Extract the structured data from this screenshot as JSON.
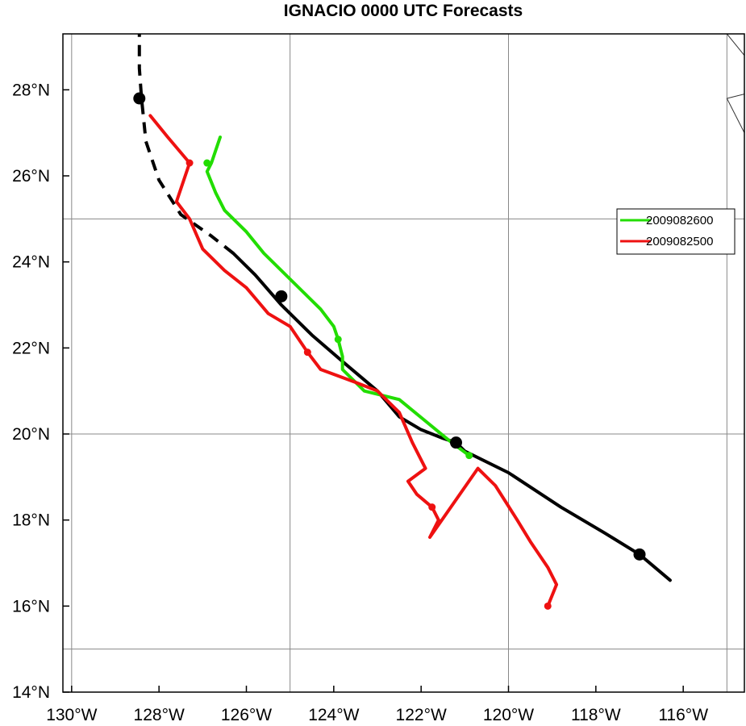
{
  "chart_data": {
    "type": "line",
    "title": "IGNACIO 0000 UTC Forecasts",
    "xlabel": "",
    "ylabel": "",
    "xlim": [
      -130.2,
      -114.6
    ],
    "ylim": [
      14.0,
      29.3
    ],
    "x_ticks": [
      -130,
      -128,
      -126,
      -124,
      -122,
      -120,
      -118,
      -116
    ],
    "x_tick_labels": [
      "130°W",
      "128°W",
      "126°W",
      "124°W",
      "122°W",
      "120°W",
      "118°W",
      "116°W"
    ],
    "y_ticks": [
      14,
      16,
      18,
      20,
      22,
      24,
      26,
      28
    ],
    "y_tick_labels": [
      "14°N",
      "16°N",
      "18°N",
      "20°N",
      "22°N",
      "24°N",
      "26°N",
      "28°N"
    ],
    "grid_lon": [
      -130,
      -125,
      -120,
      -115
    ],
    "grid_lat": [
      15,
      20,
      25
    ],
    "legend_position": "right",
    "series": [
      {
        "name": "",
        "color": "#000000",
        "role": "best-track-observed",
        "x": [
          -116.3,
          -117.0,
          -117.8,
          -118.8,
          -120.0,
          -121.0,
          -121.2,
          -121.5,
          -122.0,
          -122.5,
          -123.0,
          -123.7,
          -124.5,
          -125.2,
          -125.8,
          -126.3
        ],
        "y": [
          16.6,
          17.2,
          17.7,
          18.3,
          19.1,
          19.6,
          19.8,
          19.9,
          20.1,
          20.4,
          21.0,
          21.6,
          22.3,
          23.0,
          23.7,
          24.2
        ]
      },
      {
        "name": "",
        "color": "#000000",
        "role": "best-track-extrapolated",
        "x": [
          -126.3,
          -126.8,
          -127.5,
          -128.0,
          -128.3,
          -128.4,
          -128.45,
          -128.45
        ],
        "y": [
          24.2,
          24.6,
          25.1,
          25.9,
          26.8,
          27.8,
          28.5,
          29.3
        ]
      },
      {
        "name": "2009082600",
        "color": "#22dd00",
        "x": [
          -120.9,
          -121.3,
          -121.9,
          -122.5,
          -123.3,
          -123.8,
          -123.8,
          -123.9,
          -124.0,
          -124.3,
          -124.7,
          -125.0,
          -125.6,
          -126.0,
          -126.5,
          -126.7,
          -126.9,
          -126.8,
          -126.6
        ],
        "y": [
          19.5,
          19.8,
          20.3,
          20.8,
          21.0,
          21.5,
          21.8,
          22.2,
          22.5,
          22.9,
          23.3,
          23.6,
          24.2,
          24.7,
          25.2,
          25.6,
          26.1,
          26.3,
          26.9
        ],
        "markers": [
          [
            -120.9,
            19.5
          ],
          [
            -123.9,
            22.2
          ],
          [
            -126.9,
            26.3
          ]
        ]
      },
      {
        "name": "2009082500",
        "color": "#ee1111",
        "x": [
          -119.1,
          -118.9,
          -119.1,
          -119.5,
          -119.8,
          -120.3,
          -120.7,
          -121.8,
          -121.6,
          -121.75,
          -122.1,
          -122.3,
          -121.9,
          -122.2,
          -122.5,
          -123.0,
          -123.5,
          -124.3,
          -124.6,
          -125.0,
          -125.5,
          -126.0,
          -126.5,
          -127.0,
          -127.3,
          -127.6,
          -127.4,
          -127.3,
          -127.8,
          -128.2
        ],
        "y": [
          16.0,
          16.5,
          16.9,
          17.5,
          18.0,
          18.8,
          19.2,
          17.6,
          18.0,
          18.3,
          18.6,
          18.9,
          19.2,
          19.8,
          20.5,
          21.0,
          21.2,
          21.5,
          21.9,
          22.5,
          22.8,
          23.4,
          23.8,
          24.3,
          25.0,
          25.4,
          26.0,
          26.3,
          26.9,
          27.4
        ],
        "markers": [
          [
            -119.1,
            16.0
          ],
          [
            -121.75,
            18.3
          ],
          [
            -124.6,
            21.9
          ],
          [
            -127.3,
            26.3
          ]
        ]
      }
    ],
    "best_track_markers": [
      [
        -117.0,
        17.2
      ],
      [
        -121.2,
        19.8
      ],
      [
        -125.2,
        23.2
      ],
      [
        -128.45,
        27.8
      ]
    ],
    "coastline": [
      [
        [
          -115.0,
          29.3
        ],
        [
          -114.6,
          28.8
        ]
      ],
      [
        [
          -115.0,
          27.8
        ],
        [
          -114.6,
          27.9
        ]
      ],
      [
        [
          -115.0,
          27.8
        ],
        [
          -114.6,
          27.0
        ]
      ]
    ]
  }
}
